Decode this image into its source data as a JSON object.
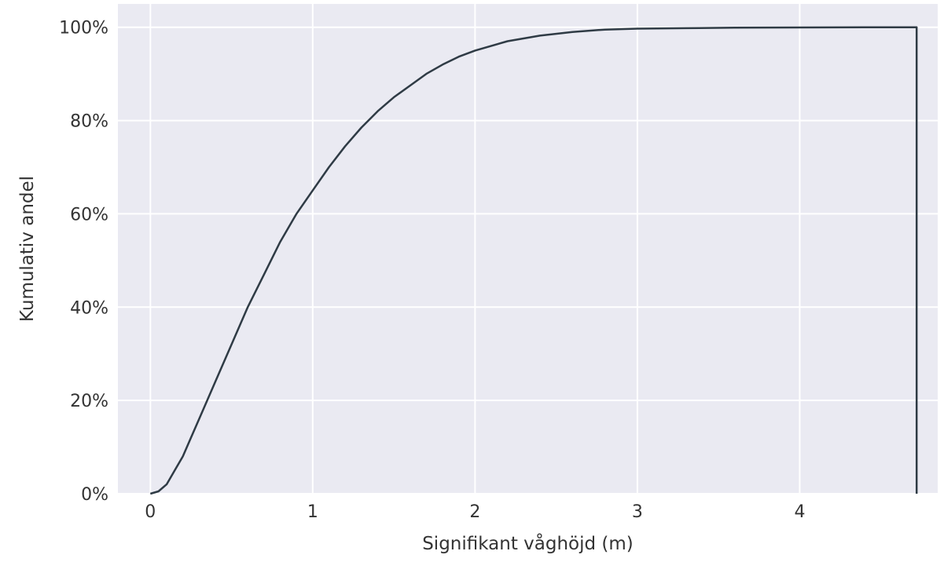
{
  "chart_data": {
    "type": "line",
    "title": "",
    "xlabel": "Signifikant våghöjd (m)",
    "ylabel": "Kumulativ andel",
    "xlim": [
      -0.2,
      4.85
    ],
    "ylim": [
      0,
      1.05
    ],
    "x_ticks": [
      0,
      1,
      2,
      3,
      4
    ],
    "x_tick_labels": [
      "0",
      "1",
      "2",
      "3",
      "4"
    ],
    "y_ticks": [
      0,
      0.2,
      0.4,
      0.6,
      0.8,
      1.0
    ],
    "y_tick_labels": [
      "0%",
      "20%",
      "40%",
      "60%",
      "80%",
      "100%"
    ],
    "grid": true,
    "background_color": "#eaeaf2",
    "grid_color": "#ffffff",
    "line_color": "#2f3b45",
    "series": [
      {
        "x": [
          0.0,
          0.05,
          0.1,
          0.15,
          0.2,
          0.25,
          0.3,
          0.4,
          0.5,
          0.6,
          0.7,
          0.8,
          0.9,
          1.0,
          1.1,
          1.2,
          1.3,
          1.4,
          1.5,
          1.6,
          1.7,
          1.8,
          1.9,
          2.0,
          2.2,
          2.4,
          2.6,
          2.8,
          3.0,
          3.3,
          3.6,
          4.0,
          4.4,
          4.72,
          4.72
        ],
        "y": [
          0.0,
          0.005,
          0.02,
          0.05,
          0.08,
          0.12,
          0.16,
          0.24,
          0.32,
          0.4,
          0.47,
          0.54,
          0.6,
          0.65,
          0.7,
          0.745,
          0.785,
          0.82,
          0.85,
          0.875,
          0.9,
          0.92,
          0.937,
          0.95,
          0.97,
          0.982,
          0.99,
          0.995,
          0.997,
          0.998,
          0.999,
          0.9995,
          1.0,
          1.0,
          0.0
        ]
      }
    ]
  }
}
